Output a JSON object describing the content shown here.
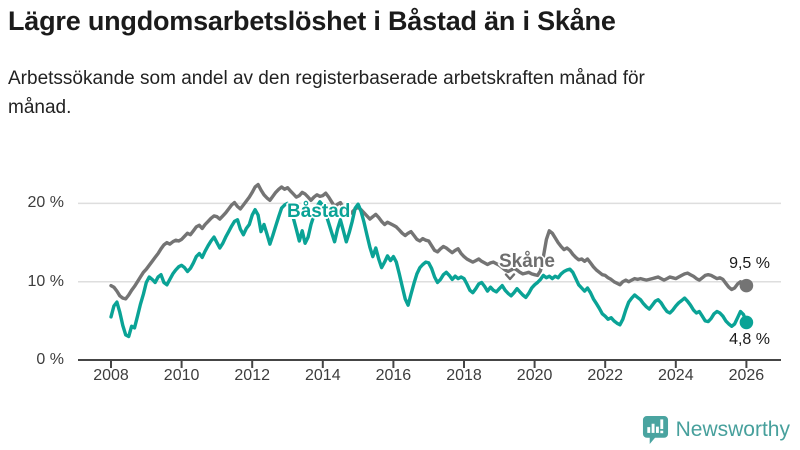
{
  "header": {
    "title": "Lägre ungdomsarbetslöshet i Båstad än i Skåne",
    "subtitle": "Arbetssökande som andel av den registerbaserade arbetskraften månad för månad."
  },
  "chart_data": {
    "type": "line",
    "title": "Lägre ungdomsarbetslöshet i Båstad än i Skåne",
    "subtitle": "Arbetssökande som andel av den registerbaserade arbetskraften månad för månad.",
    "x_start_year": 2008,
    "x_step_months": 1,
    "x_tick_years": [
      2008,
      2010,
      2012,
      2014,
      2016,
      2018,
      2020,
      2022,
      2024,
      2026
    ],
    "y_ticks": [
      {
        "value": 0,
        "label": "0 %"
      },
      {
        "value": 10,
        "label": "10 %"
      },
      {
        "value": 20,
        "label": "20 %"
      }
    ],
    "ylim": [
      0,
      24
    ],
    "grid": "horizontal",
    "legend_position": "inline-labels",
    "series": [
      {
        "key": "skane",
        "name": "Skåne",
        "color": "#747474",
        "end_label": "9,5 %",
        "last_value": 9.5,
        "values": [
          9.5,
          9.3,
          8.8,
          8.2,
          7.9,
          7.8,
          8.3,
          8.9,
          9.4,
          10.0,
          10.6,
          11.2,
          11.6,
          12.1,
          12.6,
          13.1,
          13.6,
          14.2,
          14.7,
          15.0,
          14.8,
          15.1,
          15.3,
          15.2,
          15.4,
          15.8,
          16.2,
          16.0,
          16.5,
          17.0,
          17.2,
          16.8,
          17.3,
          17.7,
          18.1,
          18.4,
          18.3,
          18.0,
          18.4,
          18.8,
          19.3,
          19.8,
          20.1,
          19.6,
          19.3,
          19.8,
          20.3,
          20.8,
          21.4,
          22.1,
          22.4,
          21.7,
          21.1,
          20.7,
          20.4,
          20.9,
          21.4,
          21.8,
          22.1,
          21.8,
          22.0,
          21.6,
          21.2,
          20.8,
          21.0,
          21.4,
          21.2,
          20.8,
          20.4,
          20.8,
          21.1,
          20.9,
          21.0,
          21.3,
          20.8,
          20.2,
          19.6,
          19.9,
          20.1,
          19.4,
          18.8,
          18.6,
          18.9,
          19.3,
          19.5,
          19.2,
          18.8,
          18.4,
          18.0,
          18.3,
          18.6,
          18.2,
          17.7,
          17.3,
          17.6,
          17.4,
          17.2,
          17.0,
          16.6,
          16.2,
          15.9,
          16.2,
          16.4,
          15.9,
          15.4,
          15.2,
          15.5,
          15.3,
          15.2,
          14.6,
          14.0,
          13.8,
          14.2,
          14.5,
          14.3,
          14.0,
          13.7,
          14.0,
          14.2,
          13.6,
          13.2,
          12.9,
          12.7,
          12.5,
          12.7,
          12.9,
          12.6,
          12.4,
          12.2,
          12.4,
          12.5,
          12.3,
          12.1,
          11.8,
          11.5,
          11.3,
          11.5,
          11.7,
          11.5,
          11.2,
          11.0,
          11.1,
          11.2,
          11.0,
          10.9,
          10.8,
          11.4,
          13.2,
          15.4,
          16.5,
          16.2,
          15.6,
          15.0,
          14.5,
          14.1,
          14.3,
          14.0,
          13.5,
          13.1,
          12.8,
          12.9,
          12.6,
          12.9,
          12.4,
          11.9,
          11.5,
          11.2,
          10.9,
          10.8,
          10.5,
          10.3,
          10.0,
          9.8,
          9.6,
          10.0,
          10.2,
          10.0,
          10.2,
          10.4,
          10.3,
          10.4,
          10.3,
          10.2,
          10.3,
          10.4,
          10.5,
          10.6,
          10.4,
          10.2,
          10.4,
          10.6,
          10.5,
          10.4,
          10.6,
          10.8,
          11.0,
          11.1,
          10.9,
          10.7,
          10.4,
          10.2,
          10.5,
          10.8,
          10.9,
          10.8,
          10.6,
          10.4,
          10.5,
          10.3,
          9.8,
          9.3,
          9.0,
          9.2,
          9.7,
          10.0,
          9.8,
          9.5
        ]
      },
      {
        "key": "bastad",
        "name": "Båstad",
        "color": "#0aa396",
        "end_label": "4,8 %",
        "last_value": 4.8,
        "values": [
          5.5,
          6.9,
          7.4,
          6.1,
          4.4,
          3.2,
          3.0,
          4.3,
          4.1,
          5.6,
          7.1,
          8.4,
          9.9,
          10.6,
          10.3,
          9.9,
          10.6,
          10.9,
          9.9,
          9.6,
          10.3,
          11.0,
          11.5,
          11.9,
          12.1,
          11.8,
          11.3,
          11.7,
          12.4,
          13.2,
          13.6,
          13.1,
          13.9,
          14.6,
          15.2,
          15.7,
          15.0,
          14.3,
          14.9,
          15.7,
          16.4,
          17.1,
          17.7,
          17.9,
          16.7,
          16.0,
          16.8,
          17.3,
          18.5,
          19.2,
          18.5,
          16.4,
          17.3,
          16.1,
          14.8,
          15.9,
          17.1,
          18.3,
          19.4,
          19.8,
          20.0,
          19.3,
          18.1,
          16.7,
          15.2,
          16.5,
          14.9,
          15.7,
          17.3,
          18.5,
          19.6,
          20.2,
          19.7,
          18.7,
          17.5,
          16.3,
          15.1,
          16.7,
          17.9,
          16.5,
          15.1,
          16.3,
          17.7,
          19.4,
          19.9,
          19.0,
          17.6,
          16.0,
          14.4,
          13.2,
          14.3,
          12.9,
          11.8,
          12.5,
          13.3,
          12.7,
          13.2,
          12.5,
          11.0,
          9.4,
          7.8,
          7.0,
          8.4,
          9.8,
          11.0,
          11.8,
          12.2,
          12.5,
          12.4,
          11.7,
          10.6,
          9.9,
          10.3,
          10.9,
          11.2,
          10.8,
          10.3,
          10.7,
          10.4,
          10.6,
          10.4,
          9.7,
          8.9,
          8.6,
          9.1,
          9.7,
          9.9,
          9.4,
          8.8,
          9.3,
          8.9,
          8.7,
          9.1,
          9.5,
          8.9,
          8.5,
          8.2,
          8.6,
          9.1,
          8.7,
          8.3,
          8.0,
          8.5,
          9.2,
          9.6,
          9.9,
          10.3,
          10.8,
          10.5,
          10.7,
          10.4,
          10.7,
          10.5,
          11.0,
          11.3,
          11.5,
          11.6,
          11.2,
          10.4,
          9.6,
          9.2,
          8.8,
          9.2,
          8.6,
          7.8,
          7.2,
          6.6,
          5.9,
          5.6,
          5.2,
          5.4,
          5.0,
          4.7,
          4.5,
          5.2,
          6.4,
          7.4,
          7.9,
          8.3,
          8.0,
          7.7,
          7.2,
          6.8,
          6.5,
          7.0,
          7.5,
          7.7,
          7.3,
          6.7,
          6.2,
          6.0,
          6.4,
          6.9,
          7.3,
          7.6,
          7.9,
          7.5,
          7.0,
          6.4,
          6.0,
          6.2,
          5.6,
          5.0,
          4.9,
          5.3,
          5.9,
          6.2,
          6.0,
          5.6,
          5.0,
          4.6,
          4.3,
          4.6,
          5.4,
          6.2,
          5.8,
          4.8
        ]
      }
    ],
    "annotations": {
      "skane_label": "Skåne",
      "bastad_label": "Båstad",
      "skane_end_label": "9,5 %",
      "bastad_end_label": "4,8 %"
    }
  },
  "footer": {
    "brand": "Newsworthy",
    "brand_color": "#47a09c"
  },
  "colors": {
    "bastad_line": "#0aa396",
    "skane_line": "#747474",
    "gridline": "#dedede",
    "axis": "#454545",
    "text": "#1b1b1b"
  }
}
